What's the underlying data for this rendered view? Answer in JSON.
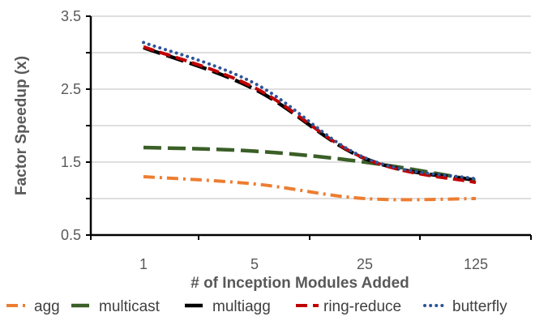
{
  "chart_data": {
    "type": "line",
    "title": "",
    "xlabel": "# of Inception Modules Added",
    "ylabel": "Factor Speedup (x)",
    "categories": [
      "1",
      "5",
      "25",
      "125"
    ],
    "ylim": [
      0.5,
      3.5
    ],
    "yticks": [
      "0.5",
      "1.5",
      "2.5",
      "3.5"
    ],
    "grid": true,
    "legend_position": "bottom",
    "series": [
      {
        "name": "agg",
        "color": "#ED7D31",
        "dash": "dashdot",
        "values": [
          1.3,
          1.2,
          1.0,
          1.0
        ]
      },
      {
        "name": "multicast",
        "color": "#3A5F27",
        "dash": "longdash",
        "values": [
          1.7,
          1.65,
          1.5,
          1.25
        ]
      },
      {
        "name": "multiagg",
        "color": "#000000",
        "dash": "longdash",
        "values": [
          3.07,
          2.5,
          1.55,
          1.25
        ]
      },
      {
        "name": "ring-reduce",
        "color": "#C00000",
        "dash": "dash",
        "values": [
          3.08,
          2.52,
          1.55,
          1.22
        ]
      },
      {
        "name": "butterfly",
        "color": "#2E5597",
        "dash": "dot",
        "values": [
          3.14,
          2.58,
          1.56,
          1.27
        ]
      }
    ]
  }
}
